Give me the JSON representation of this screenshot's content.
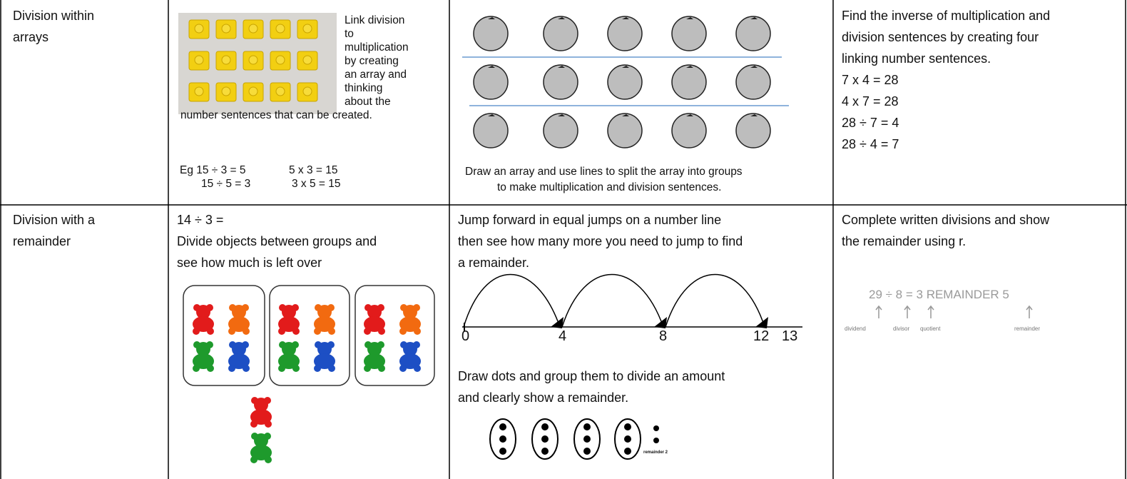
{
  "table": {
    "rows": [
      {
        "heading": [
          "Division within",
          "arrays"
        ],
        "concrete": {
          "lines": [
            "Link division",
            "to",
            "multiplication",
            "by creating",
            "an array and",
            "thinking",
            "about the",
            "number sentences that can be created."
          ],
          "examples": [
            "Eg 15 ÷ 3 = 5",
            "5 x 3 = 15",
            "15 ÷ 5 = 3",
            "3 x 5 = 15"
          ]
        },
        "pictorial": {
          "caption": [
            "Draw an array and use lines to split the array into groups",
            "to make multiplication and division sentences."
          ]
        },
        "abstract": {
          "lines": [
            "Find the inverse of multiplication and",
            "division sentences by creating four",
            "linking number sentences."
          ],
          "equations": [
            "7 x 4 = 28",
            "4 x 7 = 28",
            "28 ÷ 7 = 4",
            "28 ÷ 4 = 7"
          ]
        }
      },
      {
        "heading": [
          "Division with a",
          "remainder"
        ],
        "concrete": {
          "lines": [
            "14 ÷ 3 =",
            "Divide objects between groups and",
            "see how much is left over"
          ]
        },
        "pictorial": {
          "lines": [
            "Jump forward in equal jumps on a number line",
            "then see how many more you need to jump to find",
            "a remainder."
          ],
          "number_line": [
            "0",
            "4",
            "8",
            "12",
            "13"
          ],
          "lines_2": [
            "Draw dots and group them to divide an amount",
            "and clearly show a remainder."
          ],
          "dots_label": "remainder 2"
        },
        "abstract": {
          "lines": [
            "Complete written divisions and show",
            "the remainder using r."
          ],
          "example": "29 ÷ 8 = 3 REMAINDER 5",
          "parts": [
            "dividend",
            "divisor",
            "quotient",
            "remainder"
          ]
        }
      }
    ]
  }
}
